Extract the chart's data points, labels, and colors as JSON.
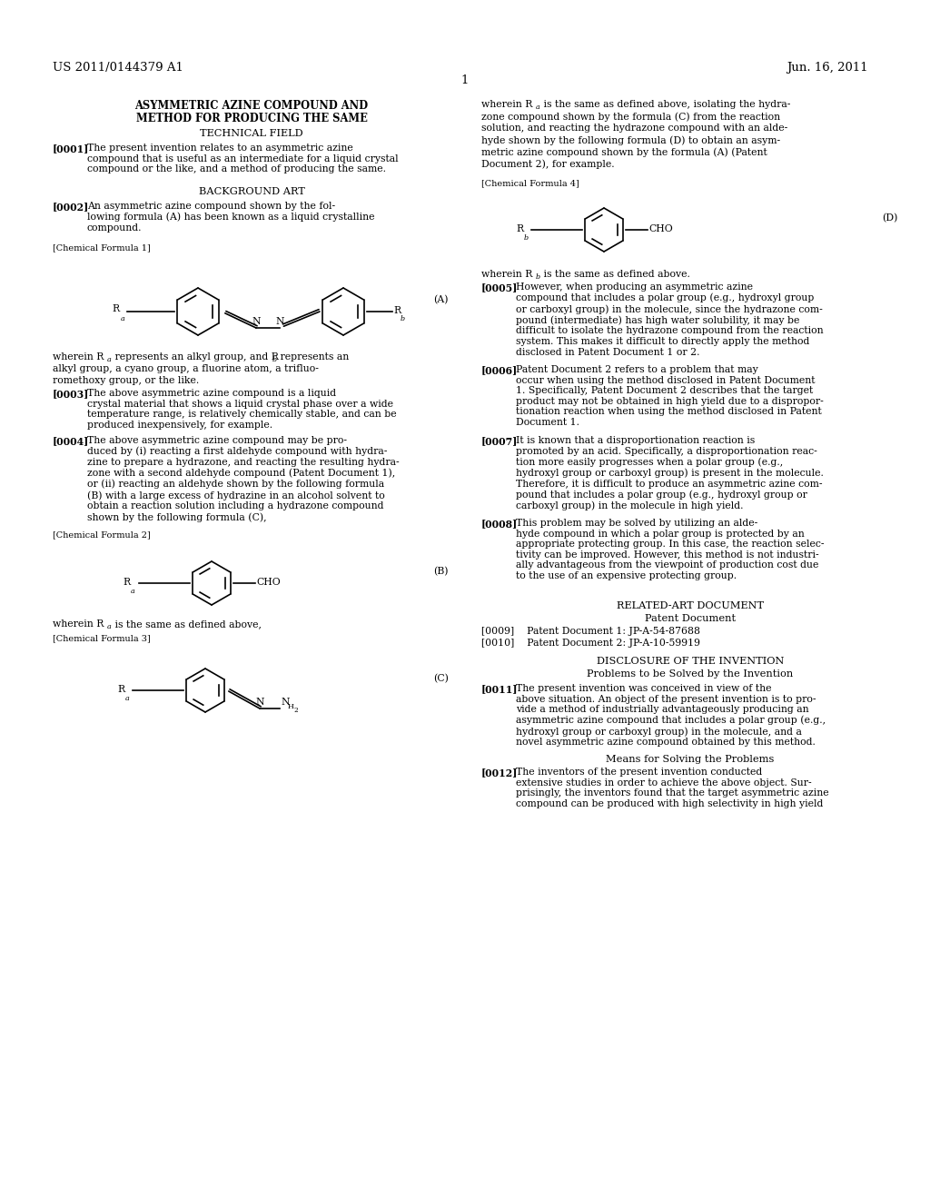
{
  "bg_color": "#ffffff",
  "header_left": "US 2011/0144379 A1",
  "header_right": "Jun. 16, 2011",
  "page_number": "1",
  "title_line1": "ASYMMETRIC AZINE COMPOUND AND",
  "title_line2": "METHOD FOR PRODUCING THE SAME",
  "section1": "TECHNICAL FIELD",
  "para0001_tag": "[0001]",
  "para0001_text": "The present invention relates to an asymmetric azine\ncompound that is useful as an intermediate for a liquid crystal\ncompound or the like, and a method of producing the same.",
  "section2": "BACKGROUND ART",
  "para0002_tag": "[0002]",
  "para0002_text": "An asymmetric azine compound shown by the fol-\nlowing formula (A) has been known as a liquid crystalline\ncompound.",
  "chem_formula1_label": "[Chemical Formula 1]",
  "formula_A_label": "(A)",
  "para_after_A_1": "wherein R",
  "para_after_A_2": "a",
  "para_after_A_3": " represents an alkyl group, and R",
  "para_after_A_4": "b",
  "para_after_A_5": " represents an\nalkyl group, a cyano group, a fluorine atom, a trifluo-\nromethoxy group, or the like.",
  "para0003_tag": "[0003]",
  "para0003_text": "The above asymmetric azine compound is a liquid\ncrystal material that shows a liquid crystal phase over a wide\ntemperature range, is relatively chemically stable, and can be\nproduced inexpensively, for example.",
  "para0004_tag": "[0004]",
  "para0004_text": "The above asymmetric azine compound may be pro-\nduced by (i) reacting a first aldehyde compound with hydra-\nzine to prepare a hydrazone, and reacting the resulting hydra-\nzone with a second aldehyde compound (Patent Document 1),\nor (ii) reacting an aldehyde shown by the following formula\n(B) with a large excess of hydrazine in an alcohol solvent to\nobtain a reaction solution including a hydrazone compound\nshown by the following formula (C),",
  "chem_formula2_label": "[Chemical Formula 2]",
  "formula_B_label": "(B)",
  "para_after_B": "wherein R",
  "para_after_B2": "a",
  "para_after_B3": " is the same as defined above,",
  "chem_formula3_label": "[Chemical Formula 3]",
  "formula_C_label": "(C)",
  "right_col_para": "wherein R",
  "right_col_para2": "a",
  "right_col_para3": " is the same as defined above, isolating the hydra-\nzone compound shown by the formula (C) from the reaction\nsolution, and reacting the hydrazone compound with an alde-\nhyde shown by the following formula (D) to obtain an asym-\nmetric azine compound shown by the formula (A) (Patent\nDocument 2), for example.",
  "chem_formula4_label": "[Chemical Formula 4]",
  "formula_D_label": "(D)",
  "para_after_D": "wherein R",
  "para_after_D2": "b",
  "para_after_D3": " is the same as defined above.",
  "para0005_tag": "[0005]",
  "para0005_text": "However, when producing an asymmetric azine\ncompound that includes a polar group (e.g., hydroxyl group\nor carboxyl group) in the molecule, since the hydrazone com-\npound (intermediate) has high water solubility, it may be\ndifficult to isolate the hydrazone compound from the reaction\nsystem. This makes it difficult to directly apply the method\ndisclosed in Patent Document 1 or 2.",
  "para0006_tag": "[0006]",
  "para0006_text": "Patent Document 2 refers to a problem that may\noccur when using the method disclosed in Patent Document\n1. Specifically, Patent Document 2 describes that the target\nproduct may not be obtained in high yield due to a dispropor-\ntionation reaction when using the method disclosed in Patent\nDocument 1.",
  "para0007_tag": "[0007]",
  "para0007_text": "It is known that a disproportionation reaction is\npromoted by an acid. Specifically, a disproportionation reac-\ntion more easily progresses when a polar group (e.g.,\nhydroxyl group or carboxyl group) is present in the molecule.\nTherefore, it is difficult to produce an asymmetric azine com-\npound that includes a polar group (e.g., hydroxyl group or\ncarboxyl group) in the molecule in high yield.",
  "para0008_tag": "[0008]",
  "para0008_text": "This problem may be solved by utilizing an alde-\nhyde compound in which a polar group is protected by an\nappropriate protecting group. In this case, the reaction selec-\ntivity can be improved. However, this method is not industri-\nally advantageous from the viewpoint of production cost due\nto the use of an expensive protecting group.",
  "section3": "RELATED-ART DOCUMENT",
  "section3b": "Patent Document",
  "para0009": "[0009]    Patent Document 1: JP-A-54-87688",
  "para0010": "[0010]    Patent Document 2: JP-A-10-59919",
  "section4": "DISCLOSURE OF THE INVENTION",
  "section4b": "Problems to be Solved by the Invention",
  "para0011_tag": "[0011]",
  "para0011_text": "The present invention was conceived in view of the\nabove situation. An object of the present invention is to pro-\nvide a method of industrially advantageously producing an\nasymmetric azine compound that includes a polar group (e.g.,\nhydroxyl group or carboxyl group) in the molecule, and a\nnovel asymmetric azine compound obtained by this method.",
  "section5": "Means for Solving the Problems",
  "para0012_tag": "[0012]",
  "para0012_text": "The inventors of the present invention conducted\nextensive studies in order to achieve the above object. Sur-\nprisingly, the inventors found that the target asymmetric azine\ncompound can be produced with high selectivity in high yield"
}
